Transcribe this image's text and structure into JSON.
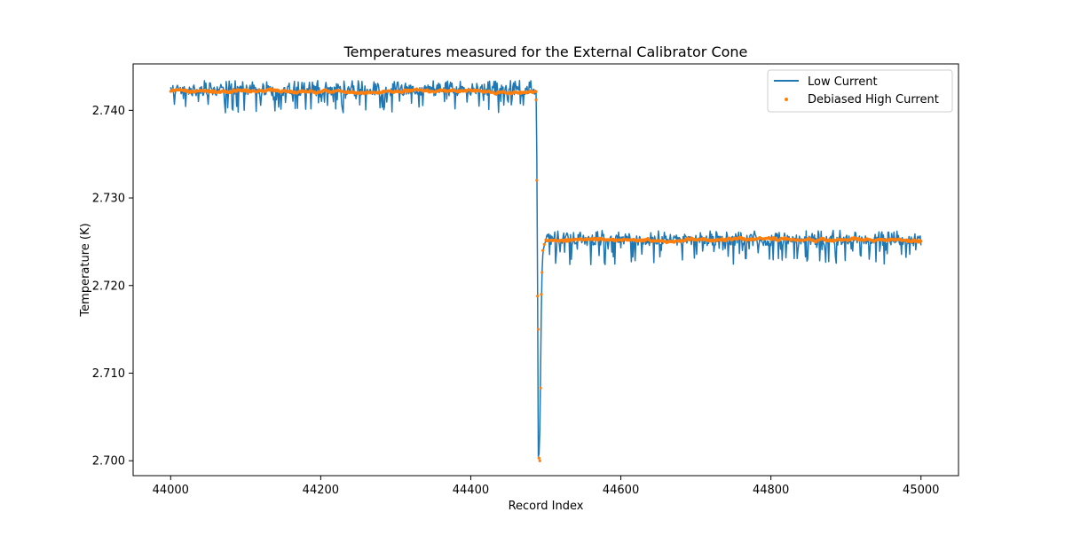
{
  "chart_data": {
    "type": "line",
    "title": "Temperatures measured for the External Calibrator Cone",
    "xlabel": "Record Index",
    "ylabel": "Temperature (K)",
    "xlim": [
      43950,
      45050
    ],
    "ylim": [
      2.6983,
      2.7453
    ],
    "xticks": [
      44000,
      44200,
      44400,
      44600,
      44800,
      45000
    ],
    "xtick_labels": [
      "44000",
      "44200",
      "44400",
      "44600",
      "44800",
      "45000"
    ],
    "yticks": [
      2.7,
      2.71,
      2.72,
      2.73,
      2.74
    ],
    "ytick_labels": [
      "2.700",
      "2.710",
      "2.720",
      "2.730",
      "2.740"
    ],
    "legend_position": "top-right",
    "series": [
      {
        "name": "Low Current",
        "kind": "line",
        "color": "#1f77b4",
        "segments": [
          {
            "x_start": 44000,
            "x_end": 44487,
            "baseline": 2.7422,
            "noise_up": 0.0012,
            "noise_down": 0.0025
          },
          {
            "x_start": 44500,
            "x_end": 45000,
            "baseline": 2.7251,
            "noise_up": 0.0012,
            "noise_down": 0.0028
          }
        ],
        "transition": {
          "x": [
            44487,
            44488,
            44489,
            44490,
            44491,
            44492,
            44493,
            44494,
            44495,
            44496,
            44497,
            44498,
            44499,
            44500
          ],
          "y": [
            2.7422,
            2.735,
            2.72,
            2.7005,
            2.7008,
            2.7035,
            2.71,
            2.717,
            2.7215,
            2.7235,
            2.7242,
            2.7246,
            2.7249,
            2.7251
          ]
        }
      },
      {
        "name": "Debiased High Current",
        "kind": "scatter",
        "color": "#ff7f0e",
        "segments": [
          {
            "x_start": 44000,
            "x_end": 44487,
            "baseline": 2.7422,
            "noise": 0.0003
          },
          {
            "x_start": 44500,
            "x_end": 45000,
            "baseline": 2.7252,
            "noise": 0.0003
          }
        ],
        "transition": {
          "x": [
            44487,
            44488,
            44489,
            44490,
            44491,
            44492,
            44493,
            44494,
            44495,
            44496,
            44498
          ],
          "y": [
            2.7412,
            2.732,
            2.7188,
            2.715,
            2.7003,
            2.7,
            2.7083,
            2.719,
            2.7215,
            2.724,
            2.7247
          ]
        }
      }
    ]
  }
}
